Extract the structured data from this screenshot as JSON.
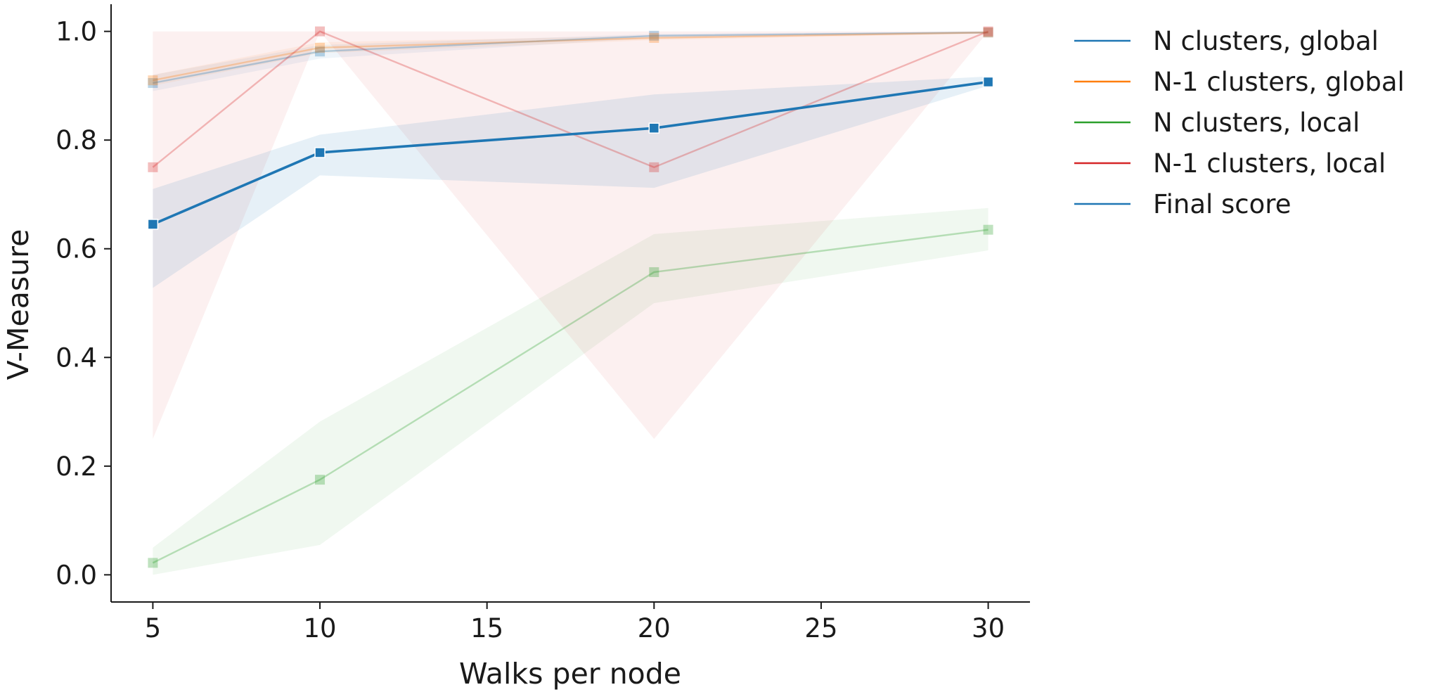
{
  "chart_data": {
    "type": "line",
    "xlabel": "Walks per node",
    "ylabel": "V-Measure",
    "x": [
      5,
      10,
      20,
      30
    ],
    "xlim": [
      3.75,
      31.25
    ],
    "ylim": [
      -0.05,
      1.05
    ],
    "xticks": [
      "5",
      "10",
      "15",
      "20",
      "25",
      "30"
    ],
    "yticks": [
      "0.0",
      "0.2",
      "0.4",
      "0.6",
      "0.8",
      "1.0"
    ],
    "grid": false,
    "legend_position": "outside-right",
    "marker": "square",
    "series": [
      {
        "name": "N clusters, global",
        "color": "#1f77b4",
        "faded": true,
        "values": [
          0.905,
          0.963,
          0.992,
          0.998
        ],
        "ci_low": [
          0.89,
          0.95,
          0.988,
          0.996
        ],
        "ci_high": [
          0.92,
          0.975,
          0.995,
          1.0
        ]
      },
      {
        "name": "N-1 clusters, global",
        "color": "#ff7f0e",
        "faded": true,
        "values": [
          0.91,
          0.97,
          0.988,
          0.998
        ],
        "ci_low": [
          0.9,
          0.96,
          0.984,
          0.996
        ],
        "ci_high": [
          0.92,
          0.98,
          0.992,
          1.0
        ]
      },
      {
        "name": "N clusters, local",
        "color": "#2ca02c",
        "faded": true,
        "values": [
          0.022,
          0.175,
          0.557,
          0.635
        ],
        "ci_low": [
          0.0,
          0.055,
          0.5,
          0.597
        ],
        "ci_high": [
          0.05,
          0.282,
          0.627,
          0.675
        ]
      },
      {
        "name": "N-1 clusters, local",
        "color": "#d62728",
        "faded": true,
        "values": [
          0.75,
          1.0,
          0.75,
          1.0
        ],
        "ci_low": [
          0.25,
          1.0,
          0.25,
          1.0
        ],
        "ci_high": [
          1.0,
          1.0,
          1.0,
          1.0
        ]
      },
      {
        "name": "Final score",
        "color": "#1f77b4",
        "faded": false,
        "values": [
          0.645,
          0.777,
          0.822,
          0.907
        ],
        "ci_low": [
          0.528,
          0.735,
          0.712,
          0.9
        ],
        "ci_high": [
          0.71,
          0.81,
          0.884,
          0.917
        ]
      }
    ]
  }
}
